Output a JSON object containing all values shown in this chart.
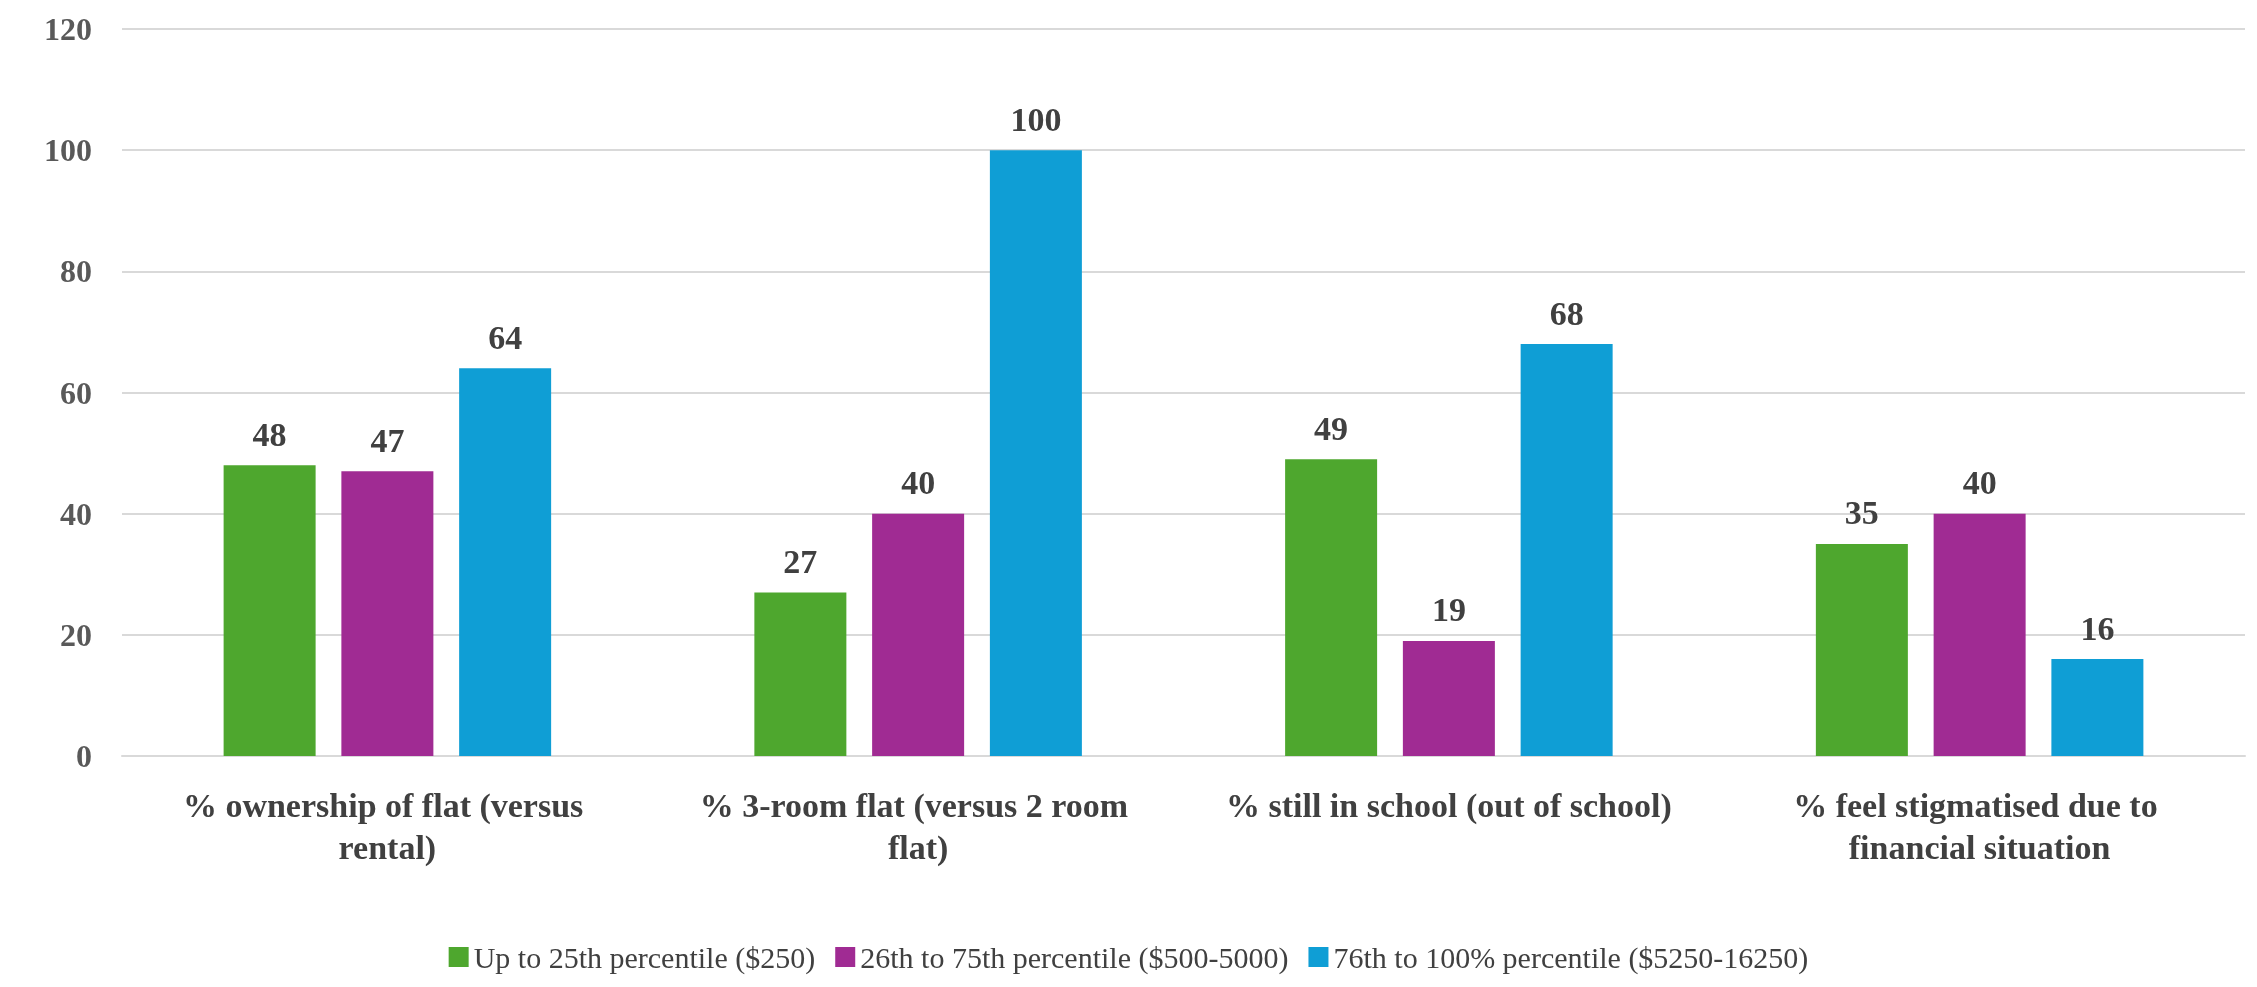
{
  "chart_data": {
    "type": "bar",
    "categories": [
      "% ownership of flat (versus rental)",
      "% 3-room flat (versus 2 room flat)",
      "% still in school (out of school)",
      "% feel stigmatised due to financial situation"
    ],
    "series": [
      {
        "name": "Up to 25th percentile ($250)",
        "color": "#4ea72e",
        "values": [
          48,
          27,
          49,
          35
        ]
      },
      {
        "name": "26th to 75th percentile ($500-5000)",
        "color": "#a02b93",
        "values": [
          47,
          40,
          19,
          40
        ]
      },
      {
        "name": "76th to 100% percentile ($5250-16250)",
        "color": "#0f9ed5",
        "values": [
          64,
          100,
          68,
          16
        ]
      }
    ],
    "ylim": [
      0,
      120
    ],
    "yticks": [
      0,
      20,
      40,
      60,
      80,
      100,
      120
    ],
    "grid": "y",
    "legend": "bottom",
    "data_labels": true
  }
}
